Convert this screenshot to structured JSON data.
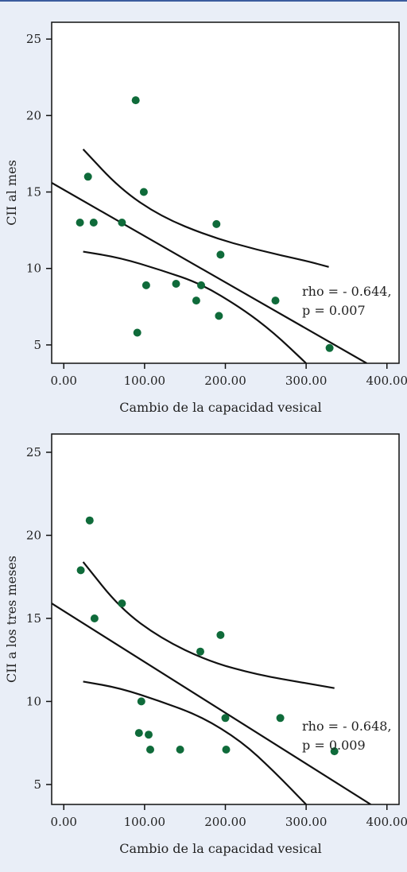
{
  "chart_data": [
    {
      "type": "scatter",
      "xlabel": "Cambio de la capacidad vesical",
      "ylabel": "CII al mes",
      "xlim": [
        -15,
        415
      ],
      "ylim": [
        3.8,
        26.1
      ],
      "x_ticks": [
        0,
        100,
        200,
        300,
        400
      ],
      "x_tick_labels": [
        "0.00",
        "100.00",
        "200.00",
        "300.00",
        "400.00"
      ],
      "y_ticks": [
        5,
        10,
        15,
        20,
        25
      ],
      "y_tick_labels": [
        "5",
        "10",
        "15",
        "20",
        "25"
      ],
      "annotations": [
        "rho = - 0.644,",
        "p = 0.007"
      ],
      "grid": false,
      "point_color": "#0f6b3a",
      "points": [
        {
          "x": 20,
          "y": 13
        },
        {
          "x": 30,
          "y": 16
        },
        {
          "x": 37,
          "y": 13
        },
        {
          "x": 72,
          "y": 13
        },
        {
          "x": 89,
          "y": 21
        },
        {
          "x": 91,
          "y": 5.8
        },
        {
          "x": 99,
          "y": 15
        },
        {
          "x": 102,
          "y": 8.9
        },
        {
          "x": 139,
          "y": 9
        },
        {
          "x": 164,
          "y": 7.9
        },
        {
          "x": 170,
          "y": 8.9
        },
        {
          "x": 189,
          "y": 12.9
        },
        {
          "x": 192,
          "y": 6.9
        },
        {
          "x": 194,
          "y": 10.9
        },
        {
          "x": 262,
          "y": 7.9
        },
        {
          "x": 329,
          "y": 4.8
        }
      ],
      "fit_line": [
        [
          -15,
          15.6
        ],
        [
          375,
          3.8
        ]
      ],
      "ci_upper": [
        [
          24,
          17.8
        ],
        [
          70,
          15.2
        ],
        [
          120,
          13.4
        ],
        [
          180,
          12.1
        ],
        [
          240,
          11.2
        ],
        [
          300,
          10.5
        ],
        [
          328,
          10.1
        ]
      ],
      "ci_lower": [
        [
          24,
          11.1
        ],
        [
          70,
          10.7
        ],
        [
          120,
          9.9
        ],
        [
          170,
          9.0
        ],
        [
          220,
          7.4
        ],
        [
          260,
          5.8
        ],
        [
          300,
          3.8
        ]
      ]
    },
    {
      "type": "scatter",
      "xlabel": "Cambio de la capacidad vesical",
      "ylabel": "CII a los tres meses",
      "xlim": [
        -15,
        415
      ],
      "ylim": [
        3.8,
        26.1
      ],
      "x_ticks": [
        0,
        100,
        200,
        300,
        400
      ],
      "x_tick_labels": [
        "0.00",
        "100.00",
        "200.00",
        "300.00",
        "400.00"
      ],
      "y_ticks": [
        5,
        10,
        15,
        20,
        25
      ],
      "y_tick_labels": [
        "5",
        "10",
        "15",
        "20",
        "25"
      ],
      "annotations": [
        "rho = - 0.648,",
        "p = 0.009"
      ],
      "grid": false,
      "point_color": "#0f6b3a",
      "points": [
        {
          "x": 21,
          "y": 17.9
        },
        {
          "x": 32,
          "y": 20.9
        },
        {
          "x": 38,
          "y": 15
        },
        {
          "x": 72,
          "y": 15.9
        },
        {
          "x": 93,
          "y": 8.1
        },
        {
          "x": 96,
          "y": 10
        },
        {
          "x": 105,
          "y": 8
        },
        {
          "x": 107,
          "y": 7.1
        },
        {
          "x": 144,
          "y": 7.1
        },
        {
          "x": 169,
          "y": 13
        },
        {
          "x": 194,
          "y": 14
        },
        {
          "x": 200,
          "y": 9
        },
        {
          "x": 201,
          "y": 7.1
        },
        {
          "x": 268,
          "y": 9
        },
        {
          "x": 335,
          "y": 7
        }
      ],
      "fit_line": [
        [
          -15,
          15.9
        ],
        [
          380,
          3.8
        ]
      ],
      "ci_upper": [
        [
          24,
          18.4
        ],
        [
          70,
          15.6
        ],
        [
          120,
          13.8
        ],
        [
          180,
          12.4
        ],
        [
          240,
          11.6
        ],
        [
          300,
          11.1
        ],
        [
          335,
          10.8
        ]
      ],
      "ci_lower": [
        [
          24,
          11.2
        ],
        [
          70,
          10.8
        ],
        [
          120,
          10.0
        ],
        [
          170,
          9.1
        ],
        [
          220,
          7.6
        ],
        [
          260,
          5.8
        ],
        [
          300,
          3.8
        ]
      ]
    }
  ]
}
